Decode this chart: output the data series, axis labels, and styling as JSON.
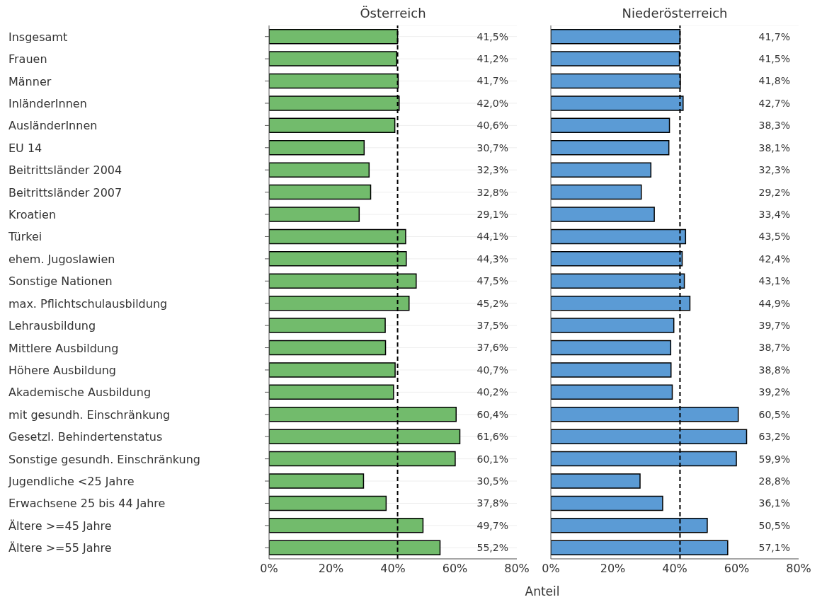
{
  "chart_data": [
    {
      "type": "bar",
      "orientation": "horizontal",
      "title": "Österreich",
      "xlabel": "Anteil",
      "categories": [
        "Insgesamt",
        "Frauen",
        "Männer",
        "InländerInnen",
        "AusländerInnen",
        "EU 14",
        "Beitrittsländer 2004",
        "Beitrittsländer 2007",
        "Kroatien",
        "Türkei",
        "ehem. Jugoslawien",
        "Sonstige Nationen",
        "max. Pflichtschulausbildung",
        "Lehrausbildung",
        "Mittlere Ausbildung",
        "Höhere Ausbildung",
        "Akademische Ausbildung",
        "mit gesundh. Einschränkung",
        "Gesetzl. Behindertenstatus",
        "Sonstige gesundh. Einschränkung",
        "Jugendliche <25 Jahre",
        "Erwachsene 25 bis 44 Jahre",
        "Ältere >=45 Jahre",
        "Ältere >=55 Jahre"
      ],
      "series": [
        {
          "color": "#72bb6c",
          "values": [
            41.5,
            41.2,
            41.7,
            42.0,
            40.6,
            30.7,
            32.3,
            32.8,
            29.1,
            44.1,
            44.3,
            47.5,
            45.2,
            37.5,
            37.6,
            40.7,
            40.2,
            60.4,
            61.6,
            60.1,
            30.5,
            37.8,
            49.7,
            55.2
          ],
          "value_labels": [
            "41,5%",
            "41,2%",
            "41,7%",
            "42,0%",
            "40,6%",
            "30,7%",
            "32,3%",
            "32,8%",
            "29,1%",
            "44,1%",
            "44,3%",
            "47,5%",
            "45,2%",
            "37,5%",
            "37,6%",
            "40,7%",
            "40,2%",
            "60,4%",
            "61,6%",
            "60,1%",
            "30,5%",
            "37,8%",
            "49,7%",
            "55,2%"
          ]
        }
      ],
      "xlim": [
        0,
        80
      ],
      "xticks": [
        {
          "value": 0,
          "label": "0%"
        },
        {
          "value": 20,
          "label": "20%"
        },
        {
          "value": 40,
          "label": "40%"
        },
        {
          "value": 60,
          "label": "60%"
        },
        {
          "value": 80,
          "label": "80%"
        }
      ],
      "ref_lines": [
        {
          "axis": "x",
          "value": 41.5,
          "line_style": "dashed",
          "color": "#000000"
        }
      ],
      "grid": "y",
      "legend": false
    },
    {
      "type": "bar",
      "orientation": "horizontal",
      "title": "Niederösterreich",
      "categories": [
        null,
        null,
        null,
        null,
        null,
        null,
        null,
        null,
        null,
        null,
        null,
        null,
        null,
        null,
        null,
        null,
        null,
        null,
        null,
        null,
        null,
        null,
        null,
        null
      ],
      "series": [
        {
          "color": "#5b9bd5",
          "values": [
            41.7,
            41.5,
            41.8,
            42.7,
            38.3,
            38.1,
            32.3,
            29.2,
            33.4,
            43.5,
            42.4,
            43.1,
            44.9,
            39.7,
            38.7,
            38.8,
            39.2,
            60.5,
            63.2,
            59.9,
            28.8,
            36.1,
            50.5,
            57.1
          ],
          "value_labels": [
            "41,7%",
            "41,5%",
            "41,8%",
            "42,7%",
            "38,3%",
            "38,1%",
            "32,3%",
            "29,2%",
            "33,4%",
            "43,5%",
            "42,4%",
            "43,1%",
            "44,9%",
            "39,7%",
            "38,7%",
            "38,8%",
            "39,2%",
            "60,5%",
            "63,2%",
            "59,9%",
            "28,8%",
            "36,1%",
            "50,5%",
            "57,1%"
          ]
        }
      ],
      "xlim": [
        0,
        80
      ],
      "xticks": [
        {
          "value": 0,
          "label": "0%"
        },
        {
          "value": 20,
          "label": "20%"
        },
        {
          "value": 40,
          "label": "40%"
        },
        {
          "value": 60,
          "label": "60%"
        },
        {
          "value": 80,
          "label": "80%"
        }
      ],
      "ref_lines": [
        {
          "axis": "x",
          "value": 41.7,
          "line_style": "dashed",
          "color": "#000000"
        }
      ],
      "grid": "y",
      "legend": false,
      "tick_labels": "x"
    }
  ]
}
